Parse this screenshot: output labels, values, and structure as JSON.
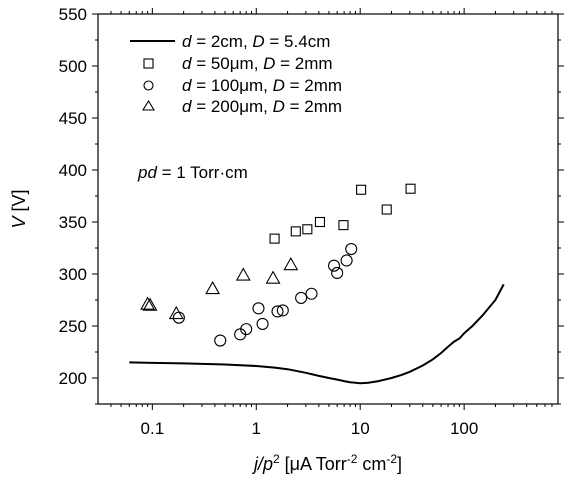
{
  "chart_data": {
    "type": "scatter",
    "xlabel": {
      "pre": "j/p",
      "sup1": "2",
      "mid": " [μA Torr",
      "sup2": "-2",
      "mid2": " cm",
      "sup3": "-2",
      "post": "]"
    },
    "ylabel": {
      "italic": "V",
      "rest": " [V]"
    },
    "x_scale": "log",
    "xlim": [
      0.03,
      800
    ],
    "ylim": [
      175,
      550
    ],
    "x_ticks": [
      0.1,
      1,
      10,
      100
    ],
    "x_tick_labels": [
      "0.1",
      "1",
      "10",
      "100"
    ],
    "y_ticks": [
      200,
      250,
      300,
      350,
      400,
      450,
      500,
      550
    ],
    "y_tick_labels": [
      "200",
      "250",
      "300",
      "350",
      "400",
      "450",
      "500",
      "550"
    ],
    "grid": false,
    "legend_position": "top-left",
    "annotation": {
      "italic": "pd",
      "rest": " = 1 Torr·cm"
    },
    "series": [
      {
        "name": {
          "d": "d",
          "dval": " = 2cm, ",
          "D": "D",
          "Dval": " = 5.4cm"
        },
        "marker": "line",
        "x": [
          0.06,
          0.1,
          0.2,
          0.5,
          1,
          1.5,
          2,
          3,
          4,
          5,
          6,
          7,
          8,
          9,
          10,
          12,
          15,
          20,
          25,
          30,
          40,
          50,
          60,
          70,
          80,
          90,
          100,
          120,
          150,
          200,
          240
        ],
        "y": [
          215,
          214.5,
          214,
          213,
          211.5,
          210,
          208.5,
          205,
          202,
          200,
          198.5,
          197,
          196,
          195.5,
          195,
          195.5,
          197,
          200,
          203,
          206,
          212,
          218,
          224,
          230,
          235,
          238,
          243,
          250,
          260,
          275,
          290
        ]
      },
      {
        "name": {
          "d": "d",
          "dval": " = 50μm, ",
          "D": "D",
          "Dval": " = 2mm"
        },
        "marker": "square",
        "x": [
          1.5,
          2.4,
          3.1,
          4.1,
          6.9,
          10.2,
          18,
          30.5
        ],
        "y": [
          334,
          341,
          343,
          350,
          347,
          381,
          362,
          382
        ]
      },
      {
        "name": {
          "d": "d",
          "dval": " = 100μm, ",
          "D": "D",
          "Dval": " = 2mm"
        },
        "marker": "circle",
        "x": [
          0.18,
          0.45,
          0.7,
          0.8,
          1.05,
          1.15,
          1.6,
          1.8,
          2.7,
          3.4,
          5.6,
          6.0,
          7.4,
          8.2
        ],
        "y": [
          258,
          236,
          242,
          247,
          267,
          252,
          264,
          265,
          277,
          281,
          308,
          301,
          313,
          324
        ]
      },
      {
        "name": {
          "d": "d",
          "dval": " = 200μm, ",
          "D": "D",
          "Dval": " = 2mm"
        },
        "marker": "triangle",
        "x": [
          0.09,
          0.095,
          0.17,
          0.38,
          0.75,
          1.45,
          2.15
        ],
        "y": [
          271,
          270,
          262,
          286,
          299,
          296,
          309
        ]
      }
    ]
  }
}
